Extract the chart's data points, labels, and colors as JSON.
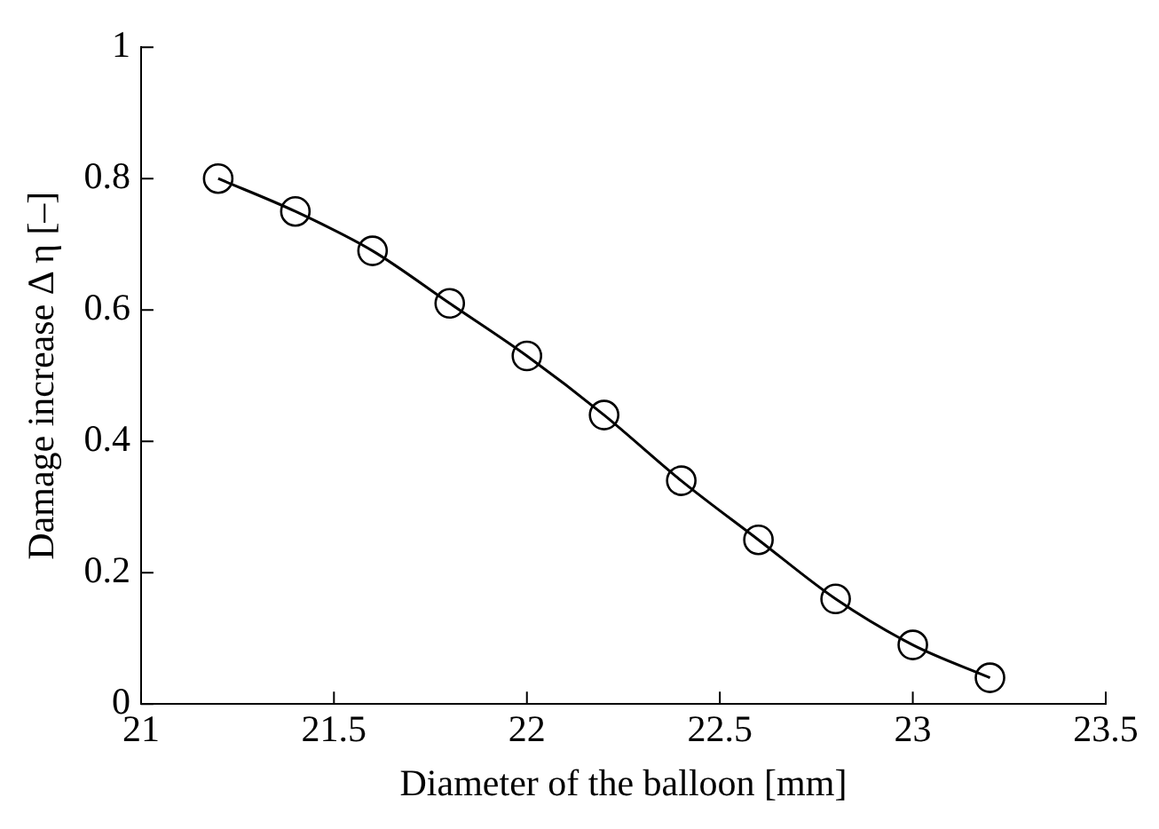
{
  "chart_data": {
    "type": "line",
    "xlabel": "Diameter of the balloon [mm]",
    "ylabel": "Damage increase Δ η [–]",
    "x": [
      21.2,
      21.4,
      21.6,
      21.8,
      22.0,
      22.2,
      22.4,
      22.6,
      22.8,
      23.0,
      23.2
    ],
    "series": [
      {
        "color": "#000000",
        "values": [
          0.8,
          0.75,
          0.69,
          0.61,
          0.53,
          0.44,
          0.34,
          0.25,
          0.16,
          0.09,
          0.04
        ]
      }
    ],
    "xlim": [
      21,
      23.5
    ],
    "xticks": [
      21,
      21.5,
      22,
      22.5,
      23,
      23.5
    ],
    "ylim": [
      0,
      1
    ],
    "yticks": [
      0,
      0.2,
      0.4,
      0.6,
      0.8,
      1
    ],
    "grid": false,
    "legend": false,
    "marker": "circle",
    "line_style": "solid"
  }
}
